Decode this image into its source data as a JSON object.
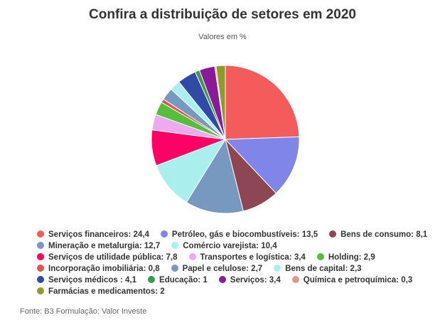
{
  "chart_data": {
    "type": "pie",
    "title": "Confira a distribuição de setores em 2020",
    "subtitle": "Valores em %",
    "legend_position": "bottom",
    "slices": [
      {
        "label": "Serviços financeiros",
        "value": 24.4,
        "display": "24,4",
        "color": "#f45b5b"
      },
      {
        "label": "Petróleo, gás e biocombustíveis",
        "value": 13.5,
        "display": "13,5",
        "color": "#8085e9"
      },
      {
        "label": "Bens de consumo",
        "value": 8.1,
        "display": "8,1",
        "color": "#8d4654"
      },
      {
        "label": "Mineração e metalurgia",
        "value": 12.7,
        "display": "12,7",
        "color": "#7798bf"
      },
      {
        "label": "Comércio varejista",
        "value": 10.4,
        "display": "10,4",
        "color": "#aaeeee"
      },
      {
        "label": "Serviços de utilidade pública",
        "value": 7.8,
        "display": "7,8",
        "color": "#ff0066"
      },
      {
        "label": "Transportes e logística",
        "value": 3.4,
        "display": "3,4",
        "color": "#eeaaee"
      },
      {
        "label": "Holding",
        "value": 2.9,
        "display": "2,9",
        "color": "#55bf3b"
      },
      {
        "label": "Incorporação imobiliária",
        "value": 0.8,
        "display": "0,8",
        "color": "#df5353"
      },
      {
        "label": "Papel e celulose",
        "value": 2.7,
        "display": "2,7",
        "color": "#7798bf"
      },
      {
        "label": "Bens de capital",
        "value": 2.3,
        "display": "2,3",
        "color": "#aaeeee"
      },
      {
        "label": "Serviços médicos ",
        "value": 4.1,
        "display": "4,1",
        "color": "#2f4ba3"
      },
      {
        "label": "Educação",
        "value": 1,
        "display": "1",
        "color": "#3a9a4a"
      },
      {
        "label": "Serviços",
        "value": 3.4,
        "display": "3,4",
        "color": "#8b1a9a"
      },
      {
        "label": "Química e petroquímica",
        "value": 0.3,
        "display": "0,3",
        "color": "#d99a8e"
      },
      {
        "label": "Farmácias e medicamentos",
        "value": 2,
        "display": "2",
        "color": "#8f9a2a"
      }
    ]
  },
  "footer": {
    "source": "Fonte: B3 Formulação: Valor Investe"
  }
}
